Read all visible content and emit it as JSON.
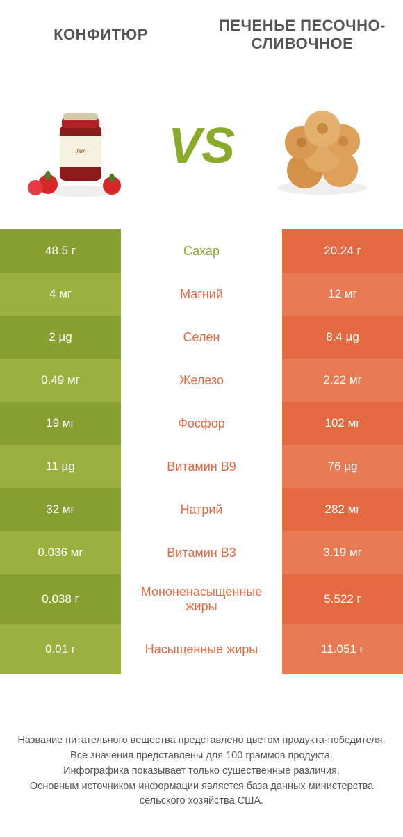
{
  "titles": {
    "left": "КОНФИТЮР",
    "right": "ПЕЧЕНЬЕ ПЕСОЧНО-СЛИВОЧНОЕ"
  },
  "vs": "VS",
  "colors": {
    "left_dark": "#879e30",
    "left_light": "#9bb13f",
    "right_dark": "#e46941",
    "right_light": "#e77a52",
    "nutrient_left": "#8aaa2a",
    "nutrient_right": "#e46941"
  },
  "rows": [
    {
      "left": "48.5 г",
      "name": "Сахар",
      "right": "20.24 г",
      "winner": "left",
      "tall": false
    },
    {
      "left": "4 мг",
      "name": "Магний",
      "right": "12 мг",
      "winner": "right",
      "tall": false
    },
    {
      "left": "2 µg",
      "name": "Селен",
      "right": "8.4 µg",
      "winner": "right",
      "tall": false
    },
    {
      "left": "0.49 мг",
      "name": "Железо",
      "right": "2.22 мг",
      "winner": "right",
      "tall": false
    },
    {
      "left": "19 мг",
      "name": "Фосфор",
      "right": "102 мг",
      "winner": "right",
      "tall": false
    },
    {
      "left": "11 µg",
      "name": "Витамин B9",
      "right": "76 µg",
      "winner": "right",
      "tall": false
    },
    {
      "left": "32 мг",
      "name": "Натрий",
      "right": "282 мг",
      "winner": "right",
      "tall": false
    },
    {
      "left": "0.036 мг",
      "name": "Витамин B3",
      "right": "3.19 мг",
      "winner": "right",
      "tall": false
    },
    {
      "left": "0.038 г",
      "name": "Мононенасыщенные жиры",
      "right": "5.522 г",
      "winner": "right",
      "tall": true
    },
    {
      "left": "0.01 г",
      "name": "Насыщенные жиры",
      "right": "11.051 г",
      "winner": "right",
      "tall": true
    }
  ],
  "footer": {
    "l1": "Название питательного вещества представлено цветом продукта-победителя.",
    "l2": "Все значения представлены для 100 граммов продукта.",
    "l3": "Инфографика показывает только существенные различия.",
    "l4": "Основным источником информации является база данных министерства сельского хозяйства США."
  }
}
